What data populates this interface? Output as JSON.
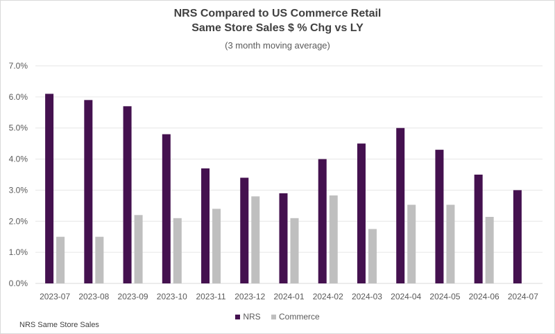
{
  "chart_data": {
    "type": "bar",
    "title": "NRS Compared to US Commerce Retail",
    "subtitle": "Same Store Sales $ % Chg vs LY",
    "subtitle2": "(3 month moving average)",
    "xlabel": "",
    "ylabel": "",
    "ylim": [
      0,
      7
    ],
    "yticks": [
      "0.0%",
      "1.0%",
      "2.0%",
      "3.0%",
      "4.0%",
      "5.0%",
      "6.0%",
      "7.0%"
    ],
    "grid": true,
    "legend_position": "bottom",
    "categories": [
      "2023-07",
      "2023-08",
      "2023-09",
      "2023-10",
      "2023-11",
      "2023-12",
      "2024-01",
      "2024-02",
      "2024-03",
      "2024-04",
      "2024-05",
      "2024-06",
      "2024-07"
    ],
    "series": [
      {
        "name": "NRS",
        "color": "#44114F",
        "values": [
          6.1,
          5.9,
          5.7,
          4.8,
          3.7,
          3.4,
          2.9,
          4.0,
          4.5,
          5.0,
          4.3,
          3.5,
          3.0
        ]
      },
      {
        "name": "Commerce",
        "color": "#BFBFBF",
        "values": [
          1.5,
          1.5,
          2.2,
          2.1,
          2.4,
          2.8,
          2.1,
          2.83,
          1.75,
          2.53,
          2.53,
          2.14,
          null
        ]
      }
    ],
    "footnote": "NRS Same Store Sales"
  }
}
